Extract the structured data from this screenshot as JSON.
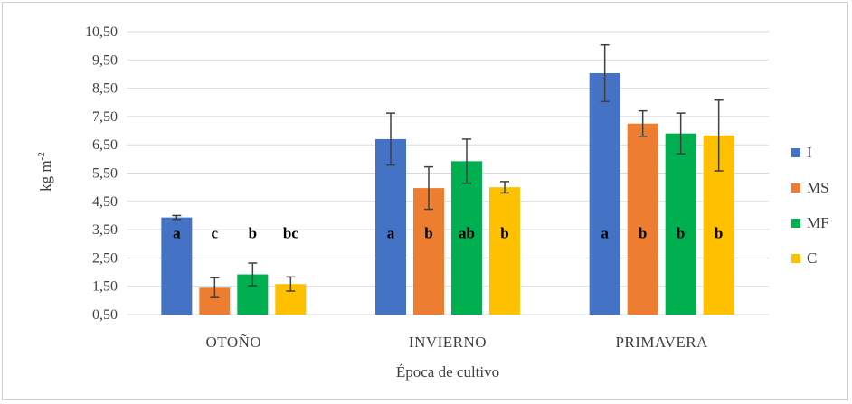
{
  "chart_data": {
    "type": "bar",
    "categories": [
      "OTOÑO",
      "INVIERNO",
      "PRIMAVERA"
    ],
    "xlabel": "Época de cultivo",
    "ylabel": "kg m",
    "ylabel_sup": "-2",
    "ylim": [
      0.5,
      10.5
    ],
    "yticks": [
      "0,50",
      "1,50",
      "2,50",
      "3,50",
      "4,50",
      "5,50",
      "6,50",
      "7,50",
      "8,50",
      "9,50",
      "10,50"
    ],
    "grid": true,
    "legend_position": "right",
    "series": [
      {
        "name": "I",
        "color": "#4472C4",
        "values": [
          3.93,
          6.7,
          9.03
        ],
        "errors": [
          0.07,
          0.92,
          1.0
        ],
        "labels": [
          "a",
          "a",
          "a"
        ]
      },
      {
        "name": "MS",
        "color": "#ED7D31",
        "values": [
          1.45,
          4.97,
          7.25
        ],
        "errors": [
          0.35,
          0.75,
          0.45
        ],
        "labels": [
          "c",
          "b",
          "b"
        ]
      },
      {
        "name": "MF",
        "color": "#00B050",
        "values": [
          1.92,
          5.92,
          6.9
        ],
        "errors": [
          0.4,
          0.78,
          0.72
        ],
        "labels": [
          "b",
          "ab",
          "b"
        ]
      },
      {
        "name": "C",
        "color": "#FFC000",
        "values": [
          1.58,
          5.0,
          6.83
        ],
        "errors": [
          0.25,
          0.2,
          1.25
        ],
        "labels": [
          "bc",
          "b",
          "b"
        ]
      }
    ]
  }
}
